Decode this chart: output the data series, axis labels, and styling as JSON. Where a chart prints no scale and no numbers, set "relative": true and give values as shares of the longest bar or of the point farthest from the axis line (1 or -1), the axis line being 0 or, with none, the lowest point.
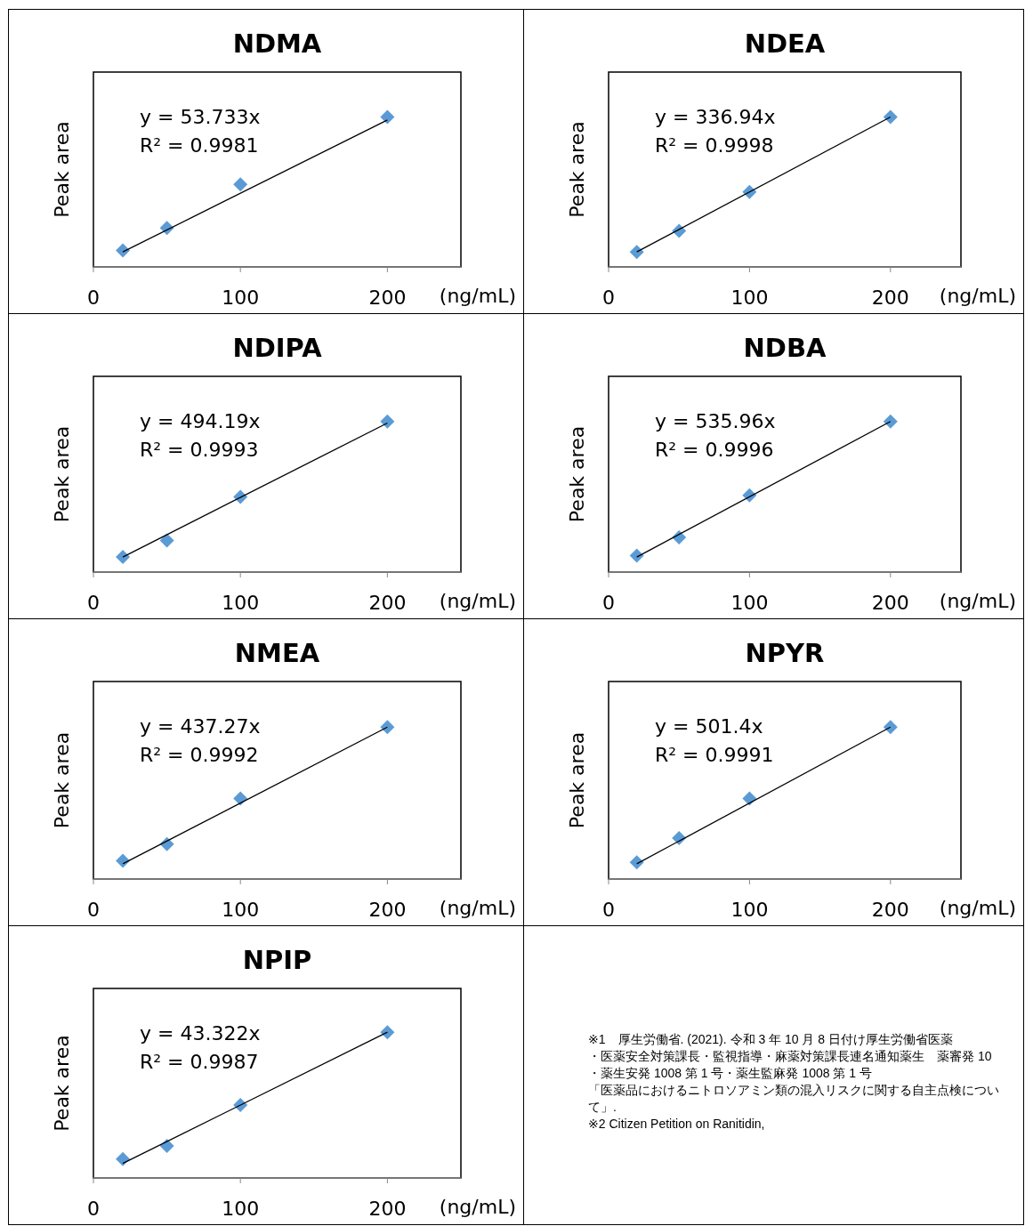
{
  "chart_data": [
    {
      "type": "scatter",
      "title": "NDMA",
      "ylabel": "Peak area",
      "xlabel": "(ng/mL)",
      "x": [
        20,
        50,
        100,
        200
      ],
      "xlim": [
        0,
        250
      ],
      "xticks": [
        0,
        100,
        200
      ],
      "relative": true,
      "annotations": [
        "y = 53.733x",
        "R² = 0.9981"
      ],
      "series": [
        {
          "type": "scatter",
          "marker": "diamond",
          "color": "#5b9bd5",
          "values": [
            0.11,
            0.26,
            0.55,
            1
          ]
        },
        {
          "type": "line",
          "marker": "none",
          "color": "#000000",
          "values": [
            0.1,
            null,
            null,
            0.98
          ]
        }
      ]
    },
    {
      "type": "scatter",
      "title": "NDEA",
      "ylabel": "Peak area",
      "xlabel": "(ng/mL)",
      "x": [
        20,
        50,
        100,
        200
      ],
      "xlim": [
        0,
        250
      ],
      "xticks": [
        0,
        100,
        200
      ],
      "relative": true,
      "annotations": [
        "y = 336.94x",
        "R² = 0.9998"
      ],
      "series": [
        {
          "type": "scatter",
          "marker": "diamond",
          "color": "#5b9bd5",
          "values": [
            0.1,
            0.24,
            0.5,
            1
          ]
        },
        {
          "type": "line",
          "marker": "none",
          "color": "#000000",
          "values": [
            0.1,
            null,
            null,
            1
          ]
        }
      ]
    },
    {
      "type": "scatter",
      "title": "NDIPA",
      "ylabel": "Peak area",
      "xlabel": "(ng/mL)",
      "x": [
        20,
        50,
        100,
        200
      ],
      "xlim": [
        0,
        250
      ],
      "xticks": [
        0,
        100,
        200
      ],
      "relative": true,
      "annotations": [
        "y = 494.19x",
        "R² = 0.9993"
      ],
      "series": [
        {
          "type": "scatter",
          "marker": "diamond",
          "color": "#5b9bd5",
          "values": [
            0.1,
            0.21,
            0.5,
            1
          ]
        },
        {
          "type": "line",
          "marker": "none",
          "color": "#000000",
          "values": [
            0.1,
            null,
            null,
            0.99
          ]
        }
      ]
    },
    {
      "type": "scatter",
      "title": "NDBA",
      "ylabel": "Peak area",
      "xlabel": "(ng/mL)",
      "x": [
        20,
        50,
        100,
        200
      ],
      "xlim": [
        0,
        250
      ],
      "xticks": [
        0,
        100,
        200
      ],
      "relative": true,
      "annotations": [
        "y = 535.96x",
        "R² = 0.9996"
      ],
      "series": [
        {
          "type": "scatter",
          "marker": "diamond",
          "color": "#5b9bd5",
          "values": [
            0.11,
            0.23,
            0.51,
            1
          ]
        },
        {
          "type": "line",
          "marker": "none",
          "color": "#000000",
          "values": [
            0.1,
            null,
            null,
            1
          ]
        }
      ]
    },
    {
      "type": "scatter",
      "title": "NMEA",
      "ylabel": "Peak area",
      "xlabel": "(ng/mL)",
      "x": [
        20,
        50,
        100,
        200
      ],
      "xlim": [
        0,
        250
      ],
      "xticks": [
        0,
        100,
        200
      ],
      "relative": true,
      "annotations": [
        "y = 437.27x",
        "R² = 0.9992"
      ],
      "series": [
        {
          "type": "scatter",
          "marker": "diamond",
          "color": "#5b9bd5",
          "values": [
            0.12,
            0.23,
            0.53,
            1
          ]
        },
        {
          "type": "line",
          "marker": "none",
          "color": "#000000",
          "values": [
            0.1,
            null,
            null,
            1
          ]
        }
      ]
    },
    {
      "type": "scatter",
      "title": "NPYR",
      "ylabel": "Peak area",
      "xlabel": "(ng/mL)",
      "x": [
        20,
        50,
        100,
        200
      ],
      "xlim": [
        0,
        250
      ],
      "xticks": [
        0,
        100,
        200
      ],
      "relative": true,
      "annotations": [
        "y = 501.4x",
        "R² = 0.9991"
      ],
      "series": [
        {
          "type": "scatter",
          "marker": "diamond",
          "color": "#5b9bd5",
          "values": [
            0.11,
            0.27,
            0.53,
            1
          ]
        },
        {
          "type": "line",
          "marker": "none",
          "color": "#000000",
          "values": [
            0.1,
            null,
            null,
            1
          ]
        }
      ]
    },
    {
      "type": "scatter",
      "title": "NPIP",
      "ylabel": "Peak area",
      "xlabel": "(ng/mL)",
      "x": [
        20,
        50,
        100,
        200
      ],
      "xlim": [
        0,
        250
      ],
      "xticks": [
        0,
        100,
        200
      ],
      "relative": true,
      "annotations": [
        "y = 43.322x",
        "R² = 0.9987"
      ],
      "series": [
        {
          "type": "scatter",
          "marker": "diamond",
          "color": "#5b9bd5",
          "values": [
            0.13,
            0.22,
            0.5,
            1
          ]
        },
        {
          "type": "line",
          "marker": "none",
          "color": "#000000",
          "values": [
            0.1,
            null,
            null,
            1
          ]
        }
      ]
    },
    {
      "type": "other",
      "annotations": [
        "※1　厚生労働省. (2021). 令和 3 年 10 月 8 日付け厚生労働省医薬",
        "・医薬安全対策課長・監視指導・麻薬対策課長連名通知薬生　薬審発 10",
        "・薬生安発 1008 第 1 号・薬生監麻発 1008 第 1 号",
        "「医薬品におけるニトロソアミン類の混入リスクに関する自主点検について」.",
        "※2  Citizen Petition on Ranitidin,"
      ]
    }
  ]
}
